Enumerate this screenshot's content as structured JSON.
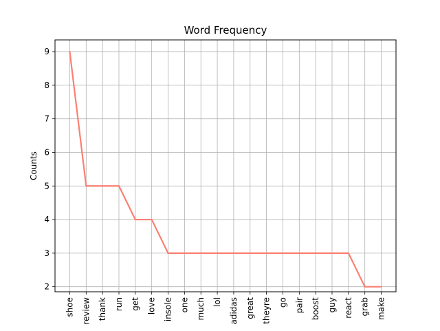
{
  "chart_data": {
    "type": "line",
    "title": "Word Frequency",
    "xlabel": "",
    "ylabel": "Counts",
    "categories": [
      "shoe",
      "review",
      "thank",
      "run",
      "get",
      "love",
      "insole",
      "one",
      "much",
      "lol",
      "adidas",
      "great",
      "theyre",
      "go",
      "pair",
      "boost",
      "guy",
      "react",
      "grab",
      "make"
    ],
    "values": [
      9,
      5,
      5,
      5,
      4,
      4,
      3,
      3,
      3,
      3,
      3,
      3,
      3,
      3,
      3,
      3,
      3,
      3,
      2,
      2
    ],
    "ylim": [
      1.85,
      9.35
    ],
    "yticks": [
      2,
      3,
      4,
      5,
      6,
      7,
      8,
      9
    ],
    "grid": true,
    "line_color": "#fa8072",
    "grid_color": "#b0b0b0"
  }
}
